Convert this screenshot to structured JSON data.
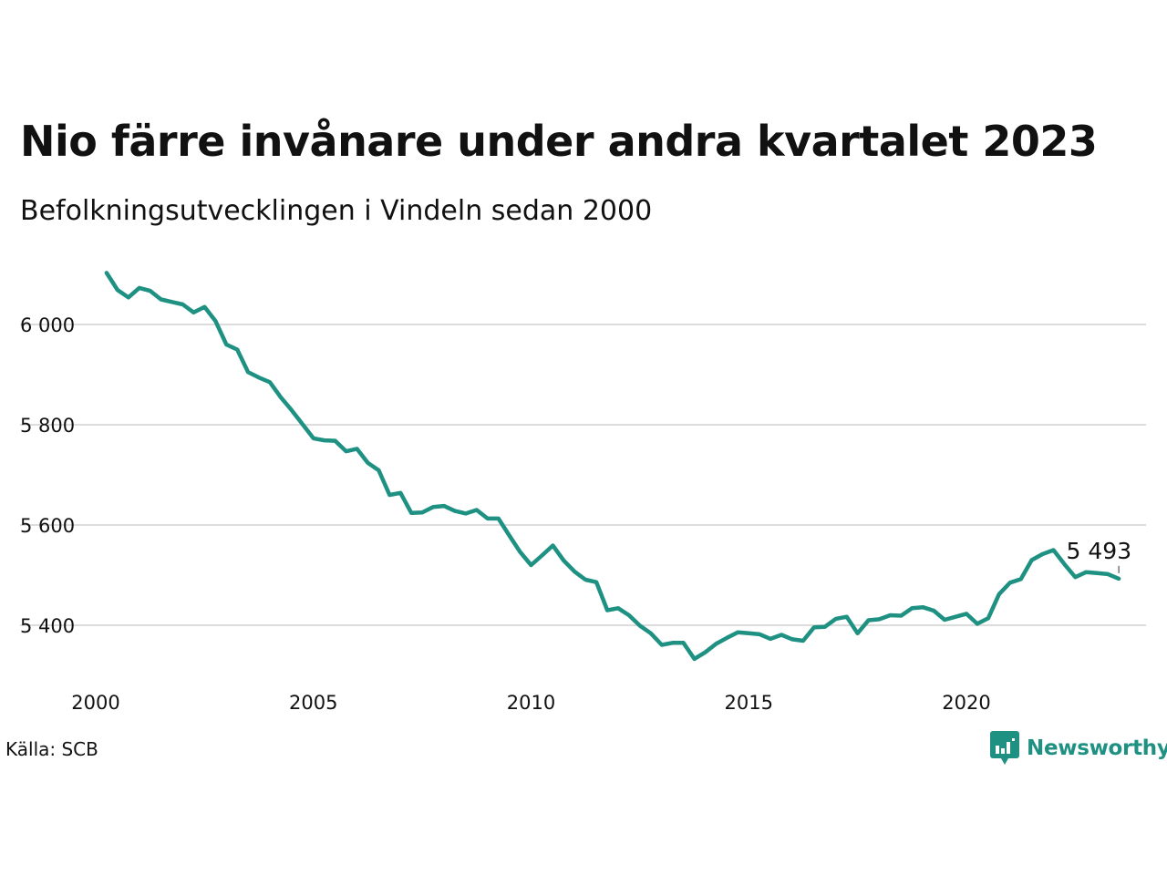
{
  "header": {
    "title": "Nio färre invånare under andra kvartalet 2023",
    "subtitle": "Befolkningsutvecklingen i Vindeln sedan 2000"
  },
  "footer": {
    "source": "Källa: SCB",
    "brand": "Newsworthy",
    "brand_icon": "newsworthy-logo-icon"
  },
  "colors": {
    "line": "#1e9183",
    "grid": "#dcdcdc",
    "text": "#111111"
  },
  "chart_data": {
    "type": "line",
    "xlabel": "",
    "ylabel": "",
    "xlim": [
      2000,
      2024.2
    ],
    "ylim": [
      5290,
      6110
    ],
    "x_ticks": [
      2000,
      2005,
      2010,
      2015,
      2020
    ],
    "x_tick_labels": [
      "2000",
      "2005",
      "2010",
      "2015",
      "2020"
    ],
    "y_ticks": [
      5400,
      5600,
      5800,
      6000
    ],
    "y_tick_labels": [
      "5 400",
      "5 600",
      "5 800",
      "6 000"
    ],
    "grid": "horizontal",
    "legend": "none",
    "annotation": {
      "x": 2023.5,
      "y": 5493,
      "label": "5 493"
    },
    "x": [
      2000.25,
      2000.5,
      2000.75,
      2001.0,
      2001.25,
      2001.5,
      2001.75,
      2002.0,
      2002.25,
      2002.5,
      2002.75,
      2003.0,
      2003.25,
      2003.5,
      2003.75,
      2004.0,
      2004.25,
      2004.5,
      2004.75,
      2005.0,
      2005.25,
      2005.5,
      2005.75,
      2006.0,
      2006.25,
      2006.5,
      2006.75,
      2007.0,
      2007.25,
      2007.5,
      2007.75,
      2008.0,
      2008.25,
      2008.5,
      2008.75,
      2009.0,
      2009.25,
      2009.5,
      2009.75,
      2010.0,
      2010.25,
      2010.5,
      2010.75,
      2011.0,
      2011.25,
      2011.5,
      2011.75,
      2012.0,
      2012.25,
      2012.5,
      2012.75,
      2013.0,
      2013.25,
      2013.5,
      2013.75,
      2014.0,
      2014.25,
      2014.5,
      2014.75,
      2015.0,
      2015.25,
      2015.5,
      2015.75,
      2016.0,
      2016.25,
      2016.5,
      2016.75,
      2017.0,
      2017.25,
      2017.5,
      2017.75,
      2018.0,
      2018.25,
      2018.5,
      2018.75,
      2019.0,
      2019.25,
      2019.5,
      2019.75,
      2020.0,
      2020.25,
      2020.5,
      2020.75,
      2021.0,
      2021.25,
      2021.5,
      2021.75,
      2022.0,
      2022.25,
      2022.5,
      2022.75,
      2023.0,
      2023.25,
      2023.5
    ],
    "series": [
      {
        "values": [
          6103,
          6069,
          6054,
          6073,
          6067,
          6050,
          6045,
          6040,
          6024,
          6035,
          6007,
          5960,
          5950,
          5905,
          5894,
          5885,
          5855,
          5829,
          5801,
          5773,
          5769,
          5768,
          5747,
          5752,
          5724,
          5709,
          5660,
          5664,
          5624,
          5625,
          5636,
          5638,
          5628,
          5623,
          5630,
          5613,
          5613,
          5579,
          5546,
          5520,
          5539,
          5559,
          5529,
          5507,
          5491,
          5486,
          5430,
          5434,
          5420,
          5399,
          5384,
          5361,
          5365,
          5365,
          5333,
          5346,
          5363,
          5375,
          5386,
          5384,
          5382,
          5373,
          5381,
          5372,
          5369,
          5396,
          5397,
          5413,
          5417,
          5384,
          5410,
          5412,
          5420,
          5419,
          5434,
          5436,
          5429,
          5411,
          5417,
          5423,
          5403,
          5414,
          5462,
          5485,
          5492,
          5530,
          5542,
          5550,
          5522,
          5496,
          5506,
          5504,
          5502,
          5493
        ]
      }
    ]
  }
}
